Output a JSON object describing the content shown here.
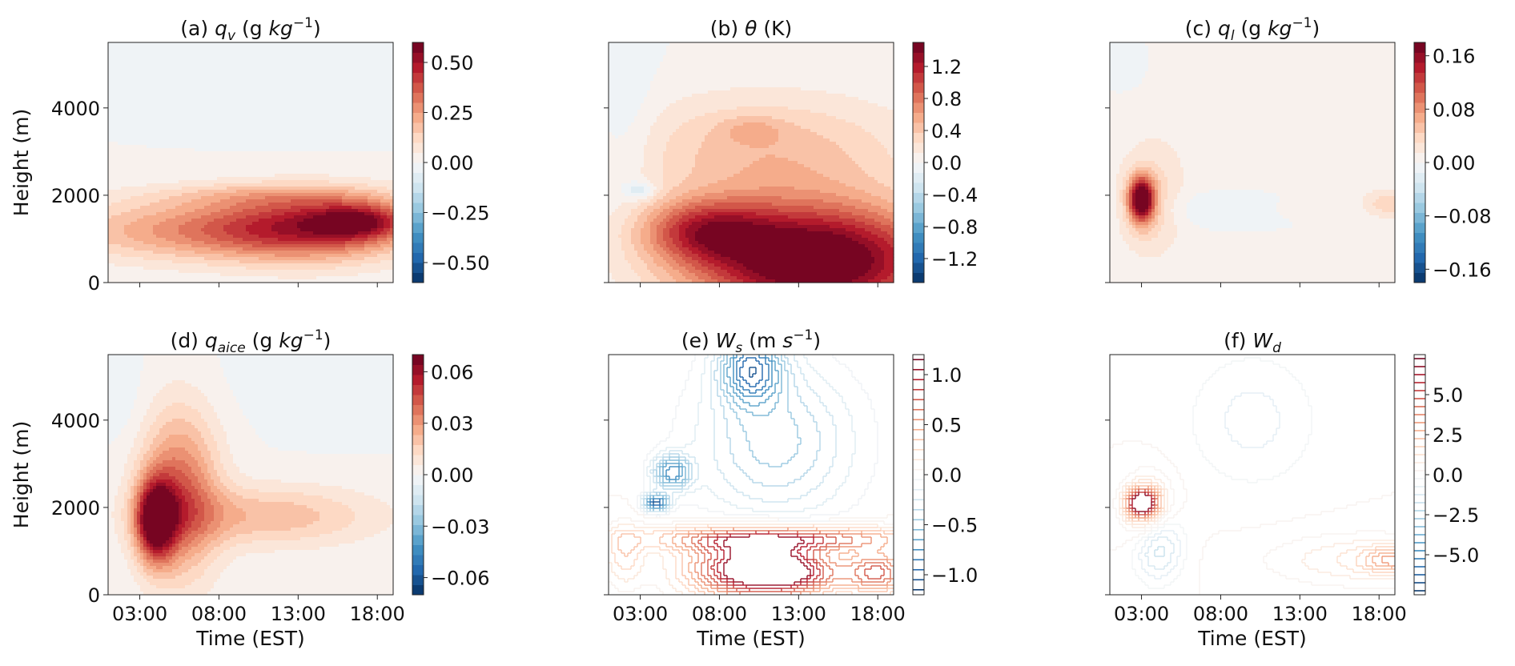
{
  "figure": {
    "xlabel": "Time (EST)",
    "ylabel": "Height (m)"
  },
  "chart_data": [
    {
      "id": "a",
      "type": "heatmap",
      "style": "filled",
      "title_pre": "(a) ",
      "title_var": "q",
      "title_sub": "v",
      "title_post": " (g ",
      "title_unit_italic": "kg",
      "title_sup": "−1",
      "title_end": ")",
      "x_ticks": [
        "03:00",
        "08:00",
        "13:00",
        "18:00"
      ],
      "xlim": [
        "01:00",
        "19:00"
      ],
      "y_ticks": [
        0,
        2000,
        4000
      ],
      "ylim": [
        0,
        5500
      ],
      "show_xticklabels": false,
      "show_yticklabels": true,
      "show_xlabel": false,
      "show_ylabel": true,
      "colorbar": {
        "vmin": -0.6,
        "vmax": 0.6,
        "ticks": [
          "−0.50",
          "−0.25",
          "0.00",
          "0.25",
          "0.50"
        ],
        "tick_values": [
          -0.5,
          -0.25,
          0,
          0.25,
          0.5
        ],
        "levels": 24
      },
      "features": [
        {
          "t": "08:00",
          "z": 1200,
          "rt": 10,
          "rz": 700,
          "amp": 0.28
        },
        {
          "t": "14:00",
          "z": 1300,
          "rt": 6,
          "rz": 800,
          "amp": 0.3
        },
        {
          "t": "17:00",
          "z": 1400,
          "rt": 3,
          "rz": 400,
          "amp": 0.3
        },
        {
          "t": "11:00",
          "z": 2000,
          "rt": 8,
          "rz": 300,
          "amp": 0.1
        },
        {
          "t": "14:00",
          "z": 4900,
          "rt": 6,
          "rz": 1300,
          "amp": -0.03
        }
      ]
    },
    {
      "id": "b",
      "type": "heatmap",
      "style": "filled",
      "title_pre": "(b) ",
      "title_var": "θ",
      "title_sub": "",
      "title_post": " (K)",
      "title_unit_italic": "",
      "title_sup": "",
      "title_end": "",
      "x_ticks": [
        "03:00",
        "08:00",
        "13:00",
        "18:00"
      ],
      "xlim": [
        "01:00",
        "19:00"
      ],
      "y_ticks": [
        0,
        2000,
        4000
      ],
      "ylim": [
        0,
        5500
      ],
      "show_xticklabels": false,
      "show_yticklabels": false,
      "show_xlabel": false,
      "show_ylabel": false,
      "colorbar": {
        "vmin": -1.5,
        "vmax": 1.5,
        "ticks": [
          "−1.2",
          "−0.8",
          "−0.4",
          "0.0",
          "0.4",
          "0.8",
          "1.2"
        ],
        "tick_values": [
          -1.2,
          -0.8,
          -0.4,
          0,
          0.4,
          0.8,
          1.2
        ],
        "levels": 24
      },
      "features": [
        {
          "t": "14:00",
          "z": 500,
          "rt": 8,
          "rz": 1300,
          "amp": 1.7
        },
        {
          "t": "07:00",
          "z": 1200,
          "rt": 4,
          "rz": 700,
          "amp": 0.8
        },
        {
          "t": "11:00",
          "z": 3000,
          "rt": 9,
          "rz": 1300,
          "amp": 0.45
        },
        {
          "t": "10:00",
          "z": 3500,
          "rt": 2,
          "rz": 300,
          "amp": 0.2
        },
        {
          "t": "02:00",
          "z": 3500,
          "rt": 2,
          "rz": 2000,
          "amp": -0.15
        },
        {
          "t": "03:00",
          "z": 2100,
          "rt": 1,
          "rz": 200,
          "amp": -0.35
        }
      ]
    },
    {
      "id": "c",
      "type": "heatmap",
      "style": "filled",
      "title_pre": "(c) ",
      "title_var": "q",
      "title_sub": "l",
      "title_post": " (g ",
      "title_unit_italic": "kg",
      "title_sup": "−1",
      "title_end": ")",
      "x_ticks": [
        "03:00",
        "08:00",
        "13:00",
        "18:00"
      ],
      "xlim": [
        "01:00",
        "19:00"
      ],
      "y_ticks": [
        0,
        2000,
        4000
      ],
      "ylim": [
        0,
        5500
      ],
      "show_xticklabels": false,
      "show_yticklabels": false,
      "show_xlabel": false,
      "show_ylabel": false,
      "colorbar": {
        "vmin": -0.18,
        "vmax": 0.18,
        "ticks": [
          "−0.16",
          "−0.08",
          "0.00",
          "0.08",
          "0.16"
        ],
        "tick_values": [
          -0.16,
          -0.08,
          0,
          0.08,
          0.16
        ],
        "levels": 24
      },
      "features": [
        {
          "t": "03:00",
          "z": 1900,
          "rt": 0.8,
          "rz": 500,
          "amp": 0.19
        },
        {
          "t": "03:30",
          "z": 1800,
          "rt": 2,
          "rz": 1200,
          "amp": 0.04
        },
        {
          "t": "11:00",
          "z": 4000,
          "rt": 10,
          "rz": 2500,
          "amp": 0.012
        },
        {
          "t": "09:00",
          "z": 1700,
          "rt": 6,
          "rz": 400,
          "amp": -0.02
        },
        {
          "t": "18:30",
          "z": 1800,
          "rt": 1.5,
          "rz": 300,
          "amp": 0.04
        },
        {
          "t": "13:00",
          "z": 1700,
          "rt": 2,
          "rz": 250,
          "amp": 0.02
        },
        {
          "t": "02:00",
          "z": 5000,
          "rt": 2,
          "rz": 800,
          "amp": -0.01
        }
      ]
    },
    {
      "id": "d",
      "type": "heatmap",
      "style": "filled",
      "title_pre": "(d) ",
      "title_var": "q",
      "title_sub": "aice",
      "title_post": " (g ",
      "title_unit_italic": "kg",
      "title_sup": "−1",
      "title_end": ")",
      "x_ticks": [
        "03:00",
        "08:00",
        "13:00",
        "18:00"
      ],
      "xlim": [
        "01:00",
        "19:00"
      ],
      "y_ticks": [
        0,
        2000,
        4000
      ],
      "ylim": [
        0,
        5500
      ],
      "show_xticklabels": true,
      "show_yticklabels": true,
      "show_xlabel": true,
      "show_ylabel": true,
      "colorbar": {
        "vmin": -0.07,
        "vmax": 0.07,
        "ticks": [
          "−0.06",
          "−0.03",
          "0.00",
          "0.03",
          "0.06"
        ],
        "tick_values": [
          -0.06,
          -0.03,
          0,
          0.03,
          0.06
        ],
        "levels": 24
      },
      "features": [
        {
          "t": "04:00",
          "z": 1700,
          "rt": 1.2,
          "rz": 900,
          "amp": 0.065
        },
        {
          "t": "05:30",
          "z": 2300,
          "rt": 2.5,
          "rz": 1900,
          "amp": 0.04
        },
        {
          "t": "11:00",
          "z": 1800,
          "rt": 7,
          "rz": 700,
          "amp": 0.022
        },
        {
          "t": "14:00",
          "z": 5000,
          "rt": 5,
          "rz": 1000,
          "amp": -0.005
        },
        {
          "t": "02:00",
          "z": 4500,
          "rt": 1.5,
          "rz": 1200,
          "amp": -0.004
        }
      ]
    },
    {
      "id": "e",
      "type": "heatmap",
      "style": "contour",
      "title_pre": "(e) ",
      "title_var": "W",
      "title_sub": "s",
      "title_post": " (m ",
      "title_unit_italic": "s",
      "title_sup": "−1",
      "title_end": ")",
      "x_ticks": [
        "03:00",
        "08:00",
        "13:00",
        "18:00"
      ],
      "xlim": [
        "01:00",
        "19:00"
      ],
      "y_ticks": [
        0,
        2000,
        4000
      ],
      "ylim": [
        0,
        5500
      ],
      "show_xticklabels": true,
      "show_yticklabels": false,
      "show_xlabel": true,
      "show_ylabel": false,
      "colorbar": {
        "vmin": -1.2,
        "vmax": 1.2,
        "ticks": [
          "−1.0",
          "−0.5",
          "0.0",
          "0.5",
          "1.0"
        ],
        "tick_values": [
          -1,
          -0.5,
          0,
          0.5,
          1
        ],
        "levels": 24
      },
      "features": [
        {
          "t": "10:00",
          "z": 600,
          "rt": 4,
          "rz": 700,
          "amp": 1.3
        },
        {
          "t": "13:00",
          "z": 500,
          "rt": 3,
          "rz": 500,
          "amp": 0.6
        },
        {
          "t": "18:00",
          "z": 500,
          "rt": 2,
          "rz": 500,
          "amp": 0.8
        },
        {
          "t": "12:00",
          "z": 1300,
          "rt": 8,
          "rz": 300,
          "amp": 0.9
        },
        {
          "t": "10:00",
          "z": 5200,
          "rt": 2,
          "rz": 800,
          "amp": -0.9
        },
        {
          "t": "11:30",
          "z": 3500,
          "rt": 5,
          "rz": 1800,
          "amp": -0.55
        },
        {
          "t": "05:00",
          "z": 2800,
          "rt": 1.2,
          "rz": 400,
          "amp": -0.8
        },
        {
          "t": "04:00",
          "z": 2100,
          "rt": 0.8,
          "rz": 200,
          "amp": -1.1
        },
        {
          "t": "02:00",
          "z": 900,
          "rt": 1.2,
          "rz": 700,
          "amp": 0.35
        }
      ]
    },
    {
      "id": "f",
      "type": "heatmap",
      "style": "contour",
      "title_pre": "(f) ",
      "title_var": "W",
      "title_sub": "d",
      "title_post": "",
      "title_unit_italic": "",
      "title_sup": "",
      "title_end": "",
      "x_ticks": [
        "03:00",
        "08:00",
        "13:00",
        "18:00"
      ],
      "xlim": [
        "01:00",
        "19:00"
      ],
      "y_ticks": [
        0,
        2000,
        4000
      ],
      "ylim": [
        0,
        5500
      ],
      "show_xticklabels": true,
      "show_yticklabels": false,
      "show_xlabel": true,
      "show_ylabel": false,
      "colorbar": {
        "vmin": -7.5,
        "vmax": 7.5,
        "ticks": [
          "−5.0",
          "−2.5",
          "0.0",
          "2.5",
          "5.0"
        ],
        "tick_values": [
          -5,
          -2.5,
          0,
          2.5,
          5
        ],
        "levels": 30
      },
      "features": [
        {
          "t": "03:00",
          "z": 2100,
          "rt": 0.9,
          "rz": 300,
          "amp": 9
        },
        {
          "t": "03:30",
          "z": 1900,
          "rt": 1.5,
          "rz": 800,
          "amp": 3
        },
        {
          "t": "04:00",
          "z": 1200,
          "rt": 1.5,
          "rz": 800,
          "amp": -3
        },
        {
          "t": "10:00",
          "z": 4000,
          "rt": 4,
          "rz": 1500,
          "amp": -1.2
        },
        {
          "t": "17:00",
          "z": 800,
          "rt": 6,
          "rz": 600,
          "amp": 1.5
        },
        {
          "t": "19:00",
          "z": 800,
          "rt": 2,
          "rz": 300,
          "amp": 2.5
        }
      ]
    }
  ]
}
